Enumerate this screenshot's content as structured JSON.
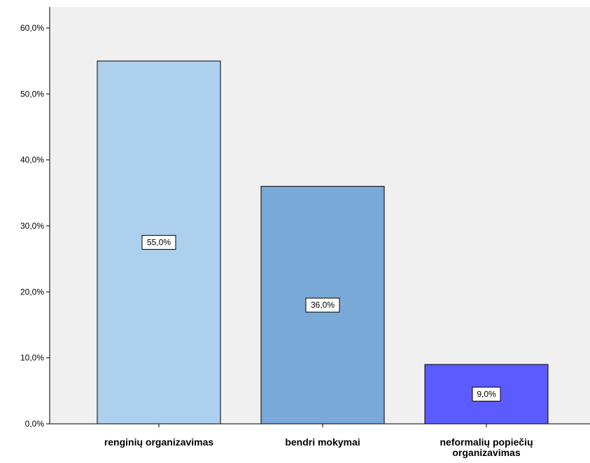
{
  "chart_data": {
    "type": "bar",
    "categories": [
      [
        "renginių organizavimas"
      ],
      [
        "bendri mokymai"
      ],
      [
        "neformalių popiečių",
        "organizavimas"
      ]
    ],
    "values": [
      55.0,
      36.0,
      9.0
    ],
    "data_labels": [
      "55,0%",
      "36,0%",
      "9,0%"
    ],
    "bar_colors": [
      "#acd0ee",
      "#79a9d7",
      "#5b5bff"
    ],
    "ylim": [
      0,
      60
    ],
    "yticks": [
      0,
      10,
      20,
      30,
      40,
      50,
      60
    ],
    "ytick_labels": [
      "0,0%",
      "10,0%",
      "20,0%",
      "30,0%",
      "40,0%",
      "50,0%",
      "60,0%"
    ],
    "grid": false,
    "plot_background": "#f0f0f0",
    "title": "",
    "xlabel": "",
    "ylabel": ""
  }
}
